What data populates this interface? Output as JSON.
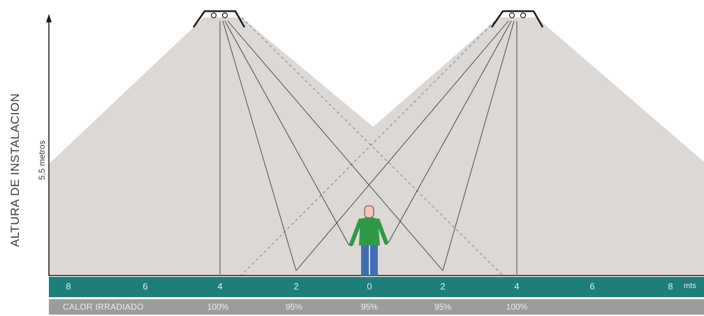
{
  "axis": {
    "title": "ALTURA DE INSTALACION",
    "height_label": "5,5 metros"
  },
  "distance_scale": {
    "ticks": [
      "8",
      "6",
      "4",
      "2",
      "0",
      "2",
      "4",
      "6",
      "8"
    ],
    "unit": "mts"
  },
  "heat": {
    "title": "CALOR IRRADIADO",
    "values": [
      "100%",
      "95%",
      "95%",
      "95%",
      "100%"
    ]
  },
  "colors": {
    "cone_fill": "#dcd8d5",
    "scale_bar": "#1e7e7b",
    "heat_bar": "#9c9c9c",
    "person_shirt": "#2e9a48",
    "person_pants": "#3f6fb0"
  },
  "icons": {
    "heater": "infrared-heater-icon",
    "person": "person-icon"
  }
}
